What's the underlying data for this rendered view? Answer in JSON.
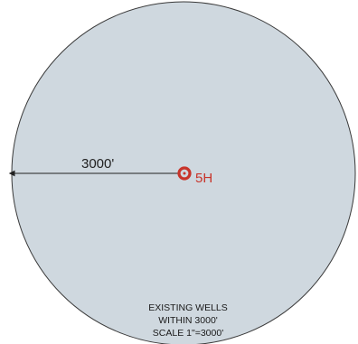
{
  "diagram": {
    "radius_label": "3000'",
    "well": {
      "label": "5H",
      "color": "#c8342a"
    },
    "circle_fill": "#cfd8df",
    "caption": {
      "line1": "EXISTING WELLS",
      "line2": "WITHIN 3000'",
      "line3": "SCALE  1\"=3000'"
    }
  }
}
